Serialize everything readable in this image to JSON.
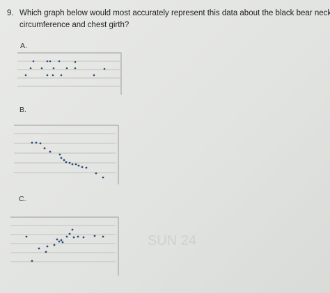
{
  "question": {
    "number": "9.",
    "lines": [
      "Which graph below would most accurately represent this data about the black bear neck",
      "circumference and chest girth?"
    ]
  },
  "options": [
    {
      "label": "A."
    },
    {
      "label": "B."
    },
    {
      "label": "C."
    }
  ],
  "watermark": "SUN 24"
}
